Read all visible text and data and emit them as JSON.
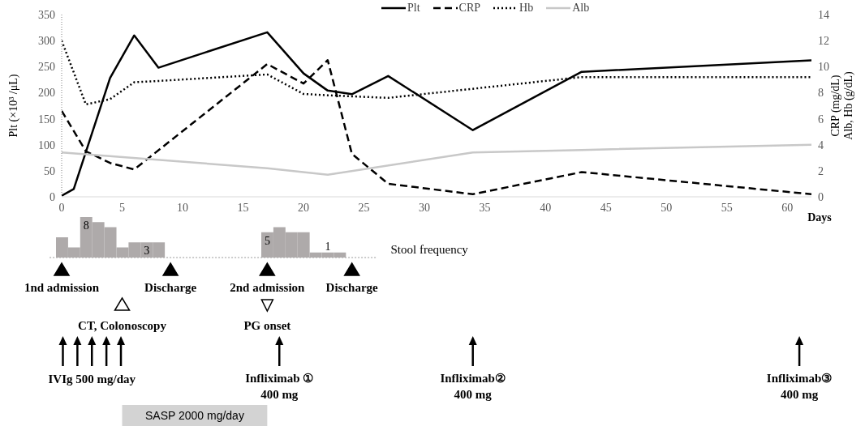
{
  "chart_data": [
    {
      "type": "line",
      "xlabel": "Days",
      "ylabel": "Plt (×10³ /μL)",
      "y2label": "CRP (mg/dL)\nAlb, Hb (g/dL)",
      "xlim": [
        0,
        62
      ],
      "xticks": [
        0,
        5,
        10,
        15,
        20,
        25,
        30,
        35,
        40,
        45,
        50,
        55,
        60
      ],
      "ylim": [
        0,
        350
      ],
      "yticks": [
        0,
        50,
        100,
        150,
        200,
        250,
        300,
        350
      ],
      "y2lim": [
        0,
        14
      ],
      "y2ticks": [
        0,
        2,
        4,
        6,
        8,
        10,
        12,
        14
      ],
      "legend": "top right",
      "marker": "none",
      "series": [
        {
          "name": "Plt",
          "color": "#000000",
          "line_style": "solid",
          "x": [
            0,
            1,
            4,
            6,
            8,
            17,
            20,
            22,
            24,
            27,
            34,
            43,
            62
          ],
          "values": [
            2,
            15,
            228,
            310,
            248,
            316,
            237,
            204,
            197,
            232,
            128,
            240,
            262
          ]
        },
        {
          "name": "CRP",
          "color": "#000000",
          "line_style": "dashed",
          "axis": "y2",
          "x": [
            0,
            2,
            4,
            6,
            17,
            20,
            22,
            24,
            27,
            34,
            43,
            62
          ],
          "values": [
            6.6,
            3.5,
            2.6,
            2.1,
            10.2,
            8.7,
            10.5,
            3.3,
            1.0,
            0.2,
            1.9,
            0.2
          ]
        },
        {
          "name": "Hb",
          "color": "#000000",
          "line_style": "dotted",
          "axis": "y2",
          "x": [
            0,
            2,
            4,
            6,
            8,
            17,
            20,
            22,
            27,
            43,
            62
          ],
          "values": [
            12.0,
            7.1,
            7.5,
            8.8,
            8.9,
            9.4,
            7.9,
            7.8,
            7.6,
            9.2,
            9.2
          ]
        },
        {
          "name": "Alb",
          "color": "#c8c8c8",
          "line_style": "solid",
          "axis": "y2",
          "x": [
            0,
            17,
            22,
            34,
            43,
            62
          ],
          "values": [
            3.4,
            2.2,
            1.7,
            3.4,
            3.6,
            4.0
          ]
        }
      ]
    },
    {
      "type": "bar",
      "color": "#aeaaaa",
      "categories": [
        null,
        null,
        null,
        null,
        null,
        null,
        null,
        null,
        null
      ],
      "values": [
        4,
        2,
        8,
        7,
        6,
        2,
        3,
        3,
        3
      ],
      "value_labels": [
        null,
        null,
        "8",
        null,
        null,
        null,
        null,
        "3",
        null
      ],
      "annotations": [
        "Stool frequency",
        "1nd admission",
        "Discharge",
        "2nd admission",
        "Discharge",
        "CT, Colonoscopy",
        "PG onset",
        "IVIg 500 mg/day",
        "Infliximab ①\n400 mg",
        "Infliximab②\n400 mg",
        "Infliximab③\n400 mg",
        "SASP 2000 mg/day"
      ]
    },
    {
      "type": "bar",
      "color": "#aeaaaa",
      "categories": [
        null,
        null,
        null,
        null,
        null,
        null,
        null
      ],
      "values": [
        5,
        6,
        5,
        5,
        1,
        1,
        1
      ],
      "value_labels": [
        "5",
        null,
        null,
        null,
        null,
        "1",
        null
      ]
    }
  ]
}
